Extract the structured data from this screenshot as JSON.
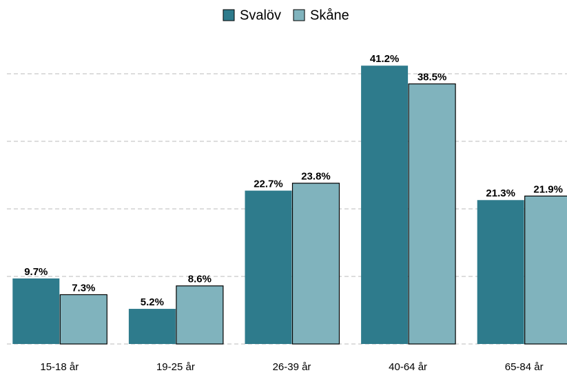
{
  "chart_data": {
    "type": "bar",
    "categories": [
      "15-18 år",
      "19-25 år",
      "26-39 år",
      "40-64 år",
      "65-84 år"
    ],
    "series": [
      {
        "name": "Svalöv",
        "color": "#2e7b8c",
        "values": [
          9.7,
          5.2,
          22.7,
          41.2,
          21.3
        ],
        "value_labels": [
          "9.7%",
          "5.2%",
          "22.7%",
          "41.2%",
          "21.3%"
        ]
      },
      {
        "name": "Skåne",
        "color": "#80b3bd",
        "values": [
          7.3,
          8.6,
          23.8,
          38.5,
          21.9
        ],
        "value_labels": [
          "7.3%",
          "8.6%",
          "23.8%",
          "38.5%",
          "21.9%"
        ]
      }
    ],
    "ylim": [
      0,
      45
    ],
    "yticks": [
      0,
      10,
      20,
      30,
      40
    ],
    "grid": true,
    "legend": "top"
  }
}
